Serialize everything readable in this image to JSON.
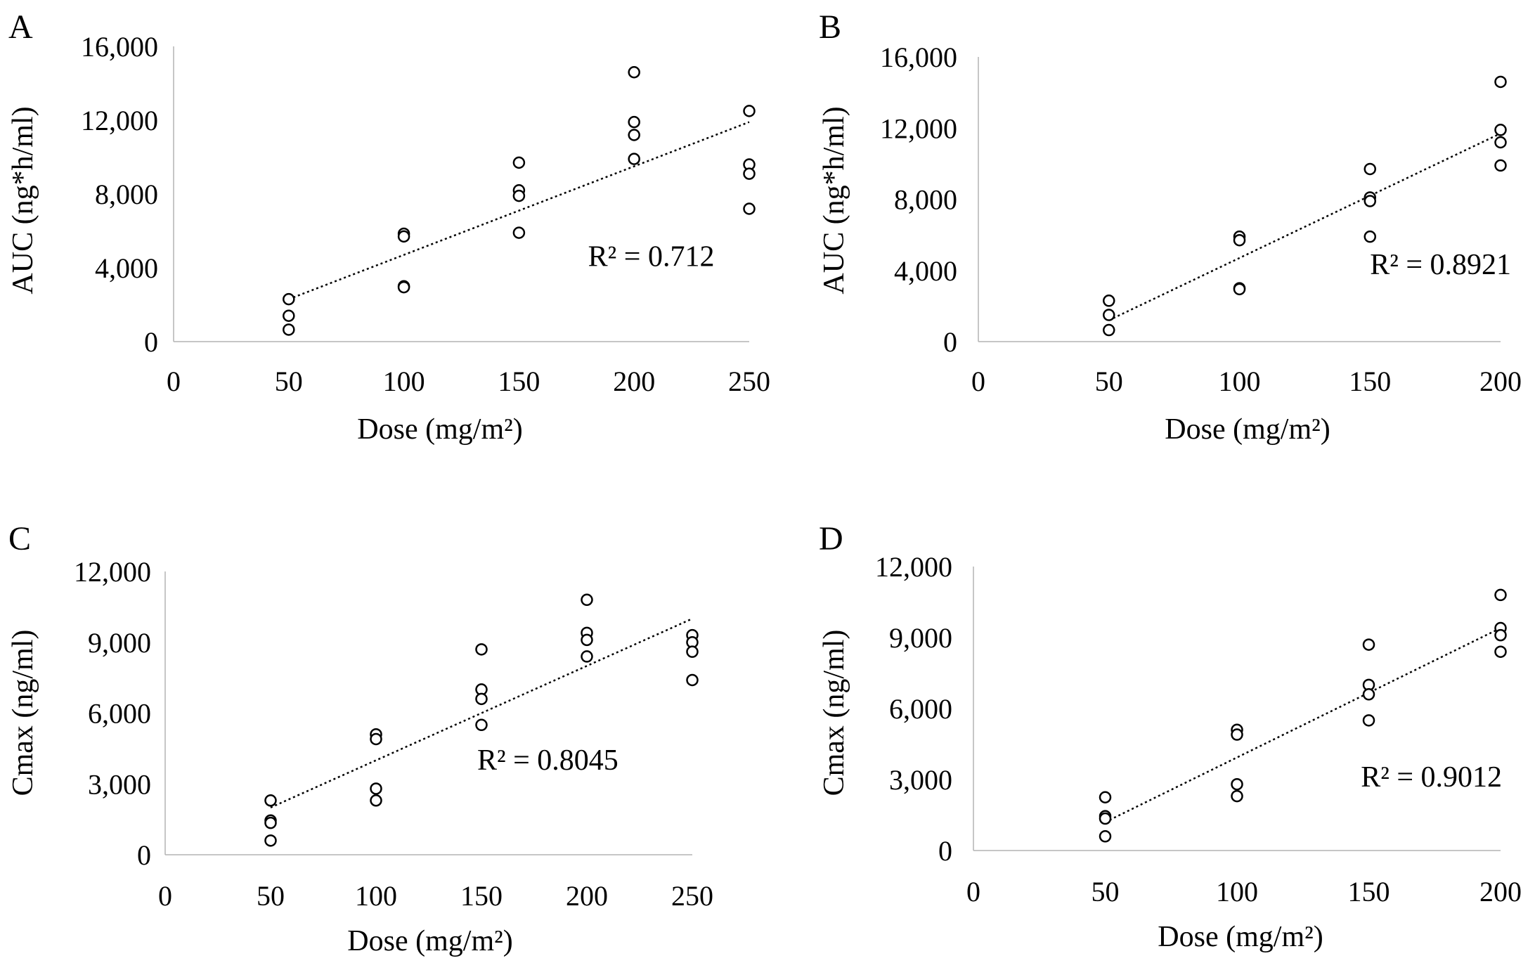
{
  "chart_data": [
    {
      "panel": "A",
      "type": "scatter",
      "xlabel": "Dose (mg/m²)",
      "ylabel": "AUC (ng*h/ml)",
      "xlim": [
        0,
        250
      ],
      "ylim": [
        0,
        16000
      ],
      "xticks": [
        0,
        50,
        100,
        150,
        200,
        250
      ],
      "xtick_labels": [
        "0",
        "50",
        "100",
        "150",
        "200",
        "250"
      ],
      "yticks": [
        0,
        4000,
        8000,
        12000,
        16000
      ],
      "ytick_labels": [
        "0",
        "4,000",
        "8,000",
        "12,000",
        "16,000"
      ],
      "points": [
        [
          50,
          2300
        ],
        [
          50,
          1400
        ],
        [
          50,
          650
        ],
        [
          100,
          5850
        ],
        [
          100,
          5700
        ],
        [
          100,
          3000
        ],
        [
          100,
          2950
        ],
        [
          150,
          9700
        ],
        [
          150,
          8200
        ],
        [
          150,
          7900
        ],
        [
          150,
          5900
        ],
        [
          200,
          14600
        ],
        [
          200,
          11900
        ],
        [
          200,
          11200
        ],
        [
          200,
          9900
        ],
        [
          250,
          12500
        ],
        [
          250,
          9600
        ],
        [
          250,
          9100
        ],
        [
          250,
          7200
        ]
      ],
      "trendline": {
        "x": [
          50,
          250
        ],
        "y": [
          2300,
          11900
        ]
      },
      "r2_label": "R² = 0.712",
      "r2_at": [
        180,
        4100
      ]
    },
    {
      "panel": "B",
      "type": "scatter",
      "xlabel": "Dose (mg/m²)",
      "ylabel": "AUC (ng*h/ml)",
      "xlim": [
        0,
        200
      ],
      "ylim": [
        0,
        16000
      ],
      "xticks": [
        0,
        50,
        100,
        150,
        200
      ],
      "xtick_labels": [
        "0",
        "50",
        "100",
        "150",
        "200"
      ],
      "yticks": [
        0,
        4000,
        8000,
        12000,
        16000
      ],
      "ytick_labels": [
        "0",
        "4,000",
        "8,000",
        "12,000",
        "16,000"
      ],
      "points": [
        [
          50,
          2300
        ],
        [
          50,
          1500
        ],
        [
          50,
          650
        ],
        [
          100,
          5900
        ],
        [
          100,
          5700
        ],
        [
          100,
          3000
        ],
        [
          100,
          2950
        ],
        [
          150,
          9700
        ],
        [
          150,
          8100
        ],
        [
          150,
          7900
        ],
        [
          150,
          5900
        ],
        [
          200,
          14600
        ],
        [
          200,
          11900
        ],
        [
          200,
          11200
        ],
        [
          200,
          9900
        ]
      ],
      "trendline": {
        "x": [
          50,
          200
        ],
        "y": [
          1200,
          11700
        ]
      },
      "r2_label": "R² = 0.8921",
      "r2_at": [
        150,
        3800
      ]
    },
    {
      "panel": "C",
      "type": "scatter",
      "xlabel": "Dose (mg/m²)",
      "ylabel": "Cmax (ng/ml)",
      "xlim": [
        0,
        250
      ],
      "ylim": [
        0,
        12000
      ],
      "xticks": [
        0,
        50,
        100,
        150,
        200,
        250
      ],
      "xtick_labels": [
        "0",
        "50",
        "100",
        "150",
        "200",
        "250"
      ],
      "yticks": [
        0,
        3000,
        6000,
        9000,
        12000
      ],
      "ytick_labels": [
        "0",
        "3,000",
        "6,000",
        "9,000",
        "12,000"
      ],
      "points": [
        [
          50,
          2300
        ],
        [
          50,
          1450
        ],
        [
          50,
          1350
        ],
        [
          50,
          600
        ],
        [
          100,
          5100
        ],
        [
          100,
          4900
        ],
        [
          100,
          2800
        ],
        [
          100,
          2300
        ],
        [
          150,
          8700
        ],
        [
          150,
          7000
        ],
        [
          150,
          6600
        ],
        [
          150,
          5500
        ],
        [
          200,
          10800
        ],
        [
          200,
          9400
        ],
        [
          200,
          9100
        ],
        [
          200,
          8400
        ],
        [
          250,
          9300
        ],
        [
          250,
          9000
        ],
        [
          250,
          8600
        ],
        [
          250,
          7400
        ]
      ],
      "trendline": {
        "x": [
          50,
          250
        ],
        "y": [
          2000,
          10000
        ]
      },
      "r2_label": "R² = 0.8045",
      "r2_at": [
        148,
        3600
      ]
    },
    {
      "panel": "D",
      "type": "scatter",
      "xlabel": "Dose (mg/m²)",
      "ylabel": "Cmax (ng/ml)",
      "xlim": [
        0,
        200
      ],
      "ylim": [
        0,
        12000
      ],
      "xticks": [
        0,
        50,
        100,
        150,
        200
      ],
      "xtick_labels": [
        "0",
        "50",
        "100",
        "150",
        "200"
      ],
      "yticks": [
        0,
        3000,
        6000,
        9000,
        12000
      ],
      "ytick_labels": [
        "0",
        "3,000",
        "6,000",
        "9,000",
        "12,000"
      ],
      "points": [
        [
          50,
          2250
        ],
        [
          50,
          1450
        ],
        [
          50,
          1350
        ],
        [
          50,
          600
        ],
        [
          100,
          5100
        ],
        [
          100,
          4900
        ],
        [
          100,
          2800
        ],
        [
          100,
          2300
        ],
        [
          150,
          8700
        ],
        [
          150,
          7000
        ],
        [
          150,
          6600
        ],
        [
          150,
          5500
        ],
        [
          200,
          10800
        ],
        [
          200,
          9400
        ],
        [
          200,
          9100
        ],
        [
          200,
          8400
        ]
      ],
      "trendline": {
        "x": [
          50,
          200
        ],
        "y": [
          1200,
          9400
        ]
      },
      "r2_label": "R² = 0.9012",
      "r2_at": [
        147,
        2700
      ]
    }
  ]
}
